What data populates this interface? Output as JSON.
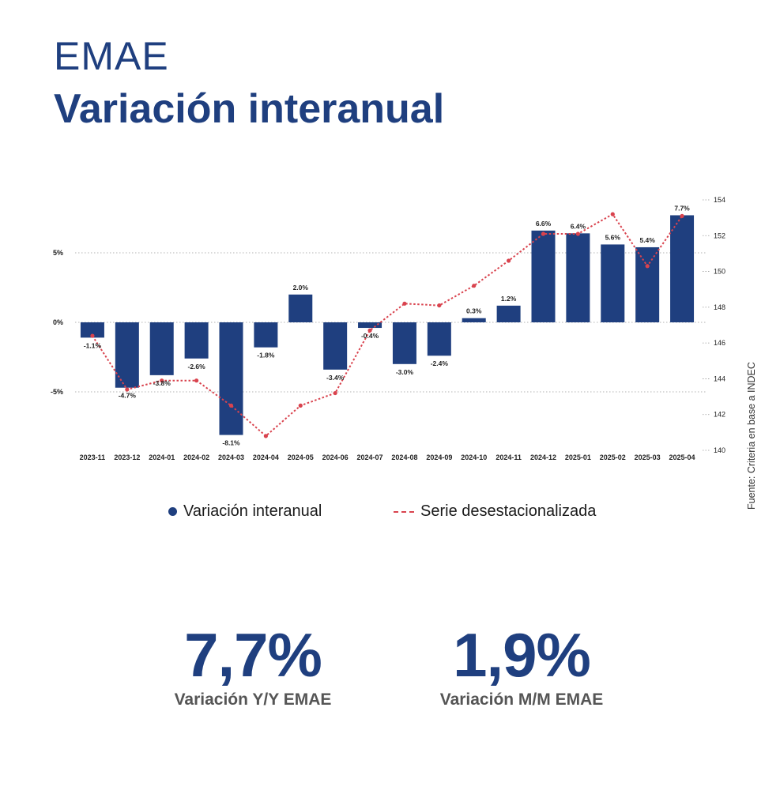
{
  "header": {
    "subtitle": "EMAE",
    "title": "Variación interanual"
  },
  "colors": {
    "bar": "#1f3f7f",
    "line": "#d9434e",
    "grid": "#9a9a9a"
  },
  "chart_data": {
    "type": "bar",
    "categories": [
      "2023-11",
      "2023-12",
      "2024-01",
      "2024-02",
      "2024-03",
      "2024-04",
      "2024-05",
      "2024-06",
      "2024-07",
      "2024-08",
      "2024-09",
      "2024-10",
      "2024-11",
      "2024-12",
      "2025-01",
      "2025-02",
      "2025-03",
      "2025-04"
    ],
    "series": [
      {
        "name": "Variación interanual",
        "type": "bar",
        "axis": "left",
        "values": [
          -1.1,
          -4.7,
          -3.8,
          -2.6,
          -8.1,
          -1.8,
          2.0,
          -3.4,
          -0.4,
          -3.0,
          -2.4,
          0.3,
          1.2,
          6.6,
          6.4,
          5.6,
          5.4,
          7.7
        ],
        "labels": [
          "-1.1%",
          "-4.7%",
          "-3.8%",
          "-2.6%",
          "-8.1%",
          "-1.8%",
          "2.0%",
          "-3.4%",
          "-0.4%",
          "-3.0%",
          "-2.4%",
          "0.3%",
          "1.2%",
          "6.6%",
          "6.4%",
          "5.6%",
          "5.4%",
          "7.7%"
        ]
      },
      {
        "name": "Serie desestacionalizada",
        "type": "line",
        "axis": "right",
        "values": [
          146.4,
          143.4,
          143.9,
          143.9,
          142.5,
          140.8,
          142.5,
          143.2,
          146.7,
          148.2,
          148.1,
          149.2,
          150.6,
          152.1,
          152.1,
          153.2,
          150.3,
          153.1
        ]
      }
    ],
    "y_left": {
      "ticks": [
        -5,
        0,
        5
      ],
      "tick_labels": [
        "-5%",
        "0%",
        "5%"
      ],
      "range": [
        -9,
        9.5
      ]
    },
    "y_right": {
      "ticks": [
        140,
        142,
        144,
        146,
        148,
        150,
        152,
        154
      ],
      "tick_labels": [
        "140",
        "142",
        "144",
        "146",
        "148",
        "150",
        "152",
        "154"
      ],
      "range": [
        140,
        154
      ]
    },
    "grid": "horizontal dotted",
    "legend": "bottom"
  },
  "legend": {
    "bar_label": "Variación interanual",
    "line_label": "Serie desestacionalizada"
  },
  "source": "Fuente: Criteria en base a INDEC",
  "kpis": [
    {
      "value": "7,7%",
      "label": "Variación Y/Y EMAE"
    },
    {
      "value": "1,9%",
      "label": "Variación M/M EMAE"
    }
  ]
}
